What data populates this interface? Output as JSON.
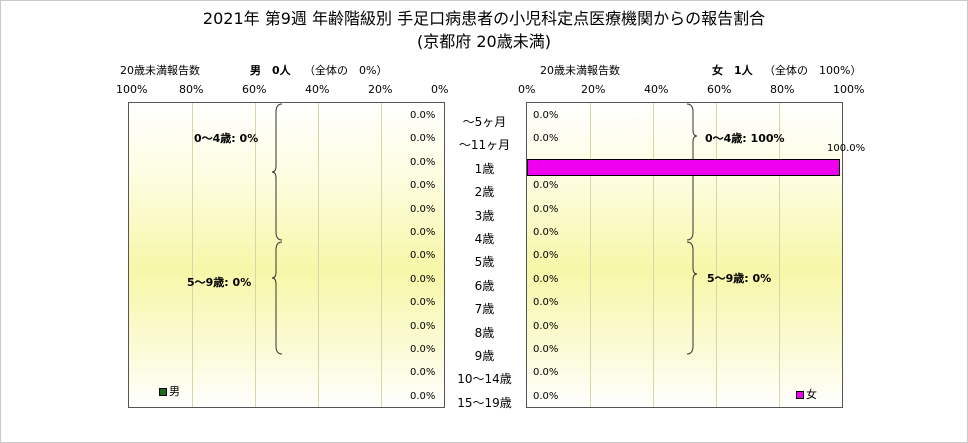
{
  "title": "2021年 第9週 年齢階級別 手足口病患者の小児科定点医療機関からの報告割合",
  "subtitle": "(京都府 20歳未満)",
  "male": {
    "header_label": "20歳未満報告数",
    "total_label": "男　0人",
    "share_label": "（全体の　0%）",
    "legend": "男",
    "legend_color": "#1a6b1a",
    "group_labels": [
      "0〜4歳: 0%",
      "5〜9歳: 0%"
    ]
  },
  "female": {
    "header_label": "20歳未満報告数",
    "total_label": "女　1人",
    "share_label": "（全体の　100%）",
    "legend": "女",
    "legend_color": "#ee00ee",
    "group_labels": [
      "0〜4歳: 100%",
      "5〜9歳: 0%"
    ]
  },
  "chart_data": {
    "type": "bar",
    "orientation": "horizontal",
    "layout": "population-pyramid",
    "categories": [
      "〜5ヶ月",
      "〜11ヶ月",
      "1歳",
      "2歳",
      "3歳",
      "4歳",
      "5歳",
      "6歳",
      "7歳",
      "8歳",
      "9歳",
      "10〜14歳",
      "15〜19歳"
    ],
    "series": [
      {
        "name": "男",
        "values": [
          0,
          0,
          0,
          0,
          0,
          0,
          0,
          0,
          0,
          0,
          0,
          0,
          0
        ],
        "labels": [
          "0.0%",
          "0.0%",
          "0.0%",
          "0.0%",
          "0.0%",
          "0.0%",
          "0.0%",
          "0.0%",
          "0.0%",
          "0.0%",
          "0.0%",
          "0.0%",
          "0.0%"
        ]
      },
      {
        "name": "女",
        "values": [
          0,
          0,
          100,
          0,
          0,
          0,
          0,
          0,
          0,
          0,
          0,
          0,
          0
        ],
        "labels": [
          "0.0%",
          "0.0%",
          "100.0%",
          "0.0%",
          "0.0%",
          "0.0%",
          "0.0%",
          "0.0%",
          "0.0%",
          "0.0%",
          "0.0%",
          "0.0%",
          "0.0%"
        ]
      }
    ],
    "male_axis_ticks": [
      "100%",
      "80%",
      "60%",
      "40%",
      "20%",
      "0%"
    ],
    "female_axis_ticks": [
      "0%",
      "20%",
      "40%",
      "60%",
      "80%",
      "100%"
    ],
    "xlim": [
      0,
      100
    ],
    "grid": true
  }
}
